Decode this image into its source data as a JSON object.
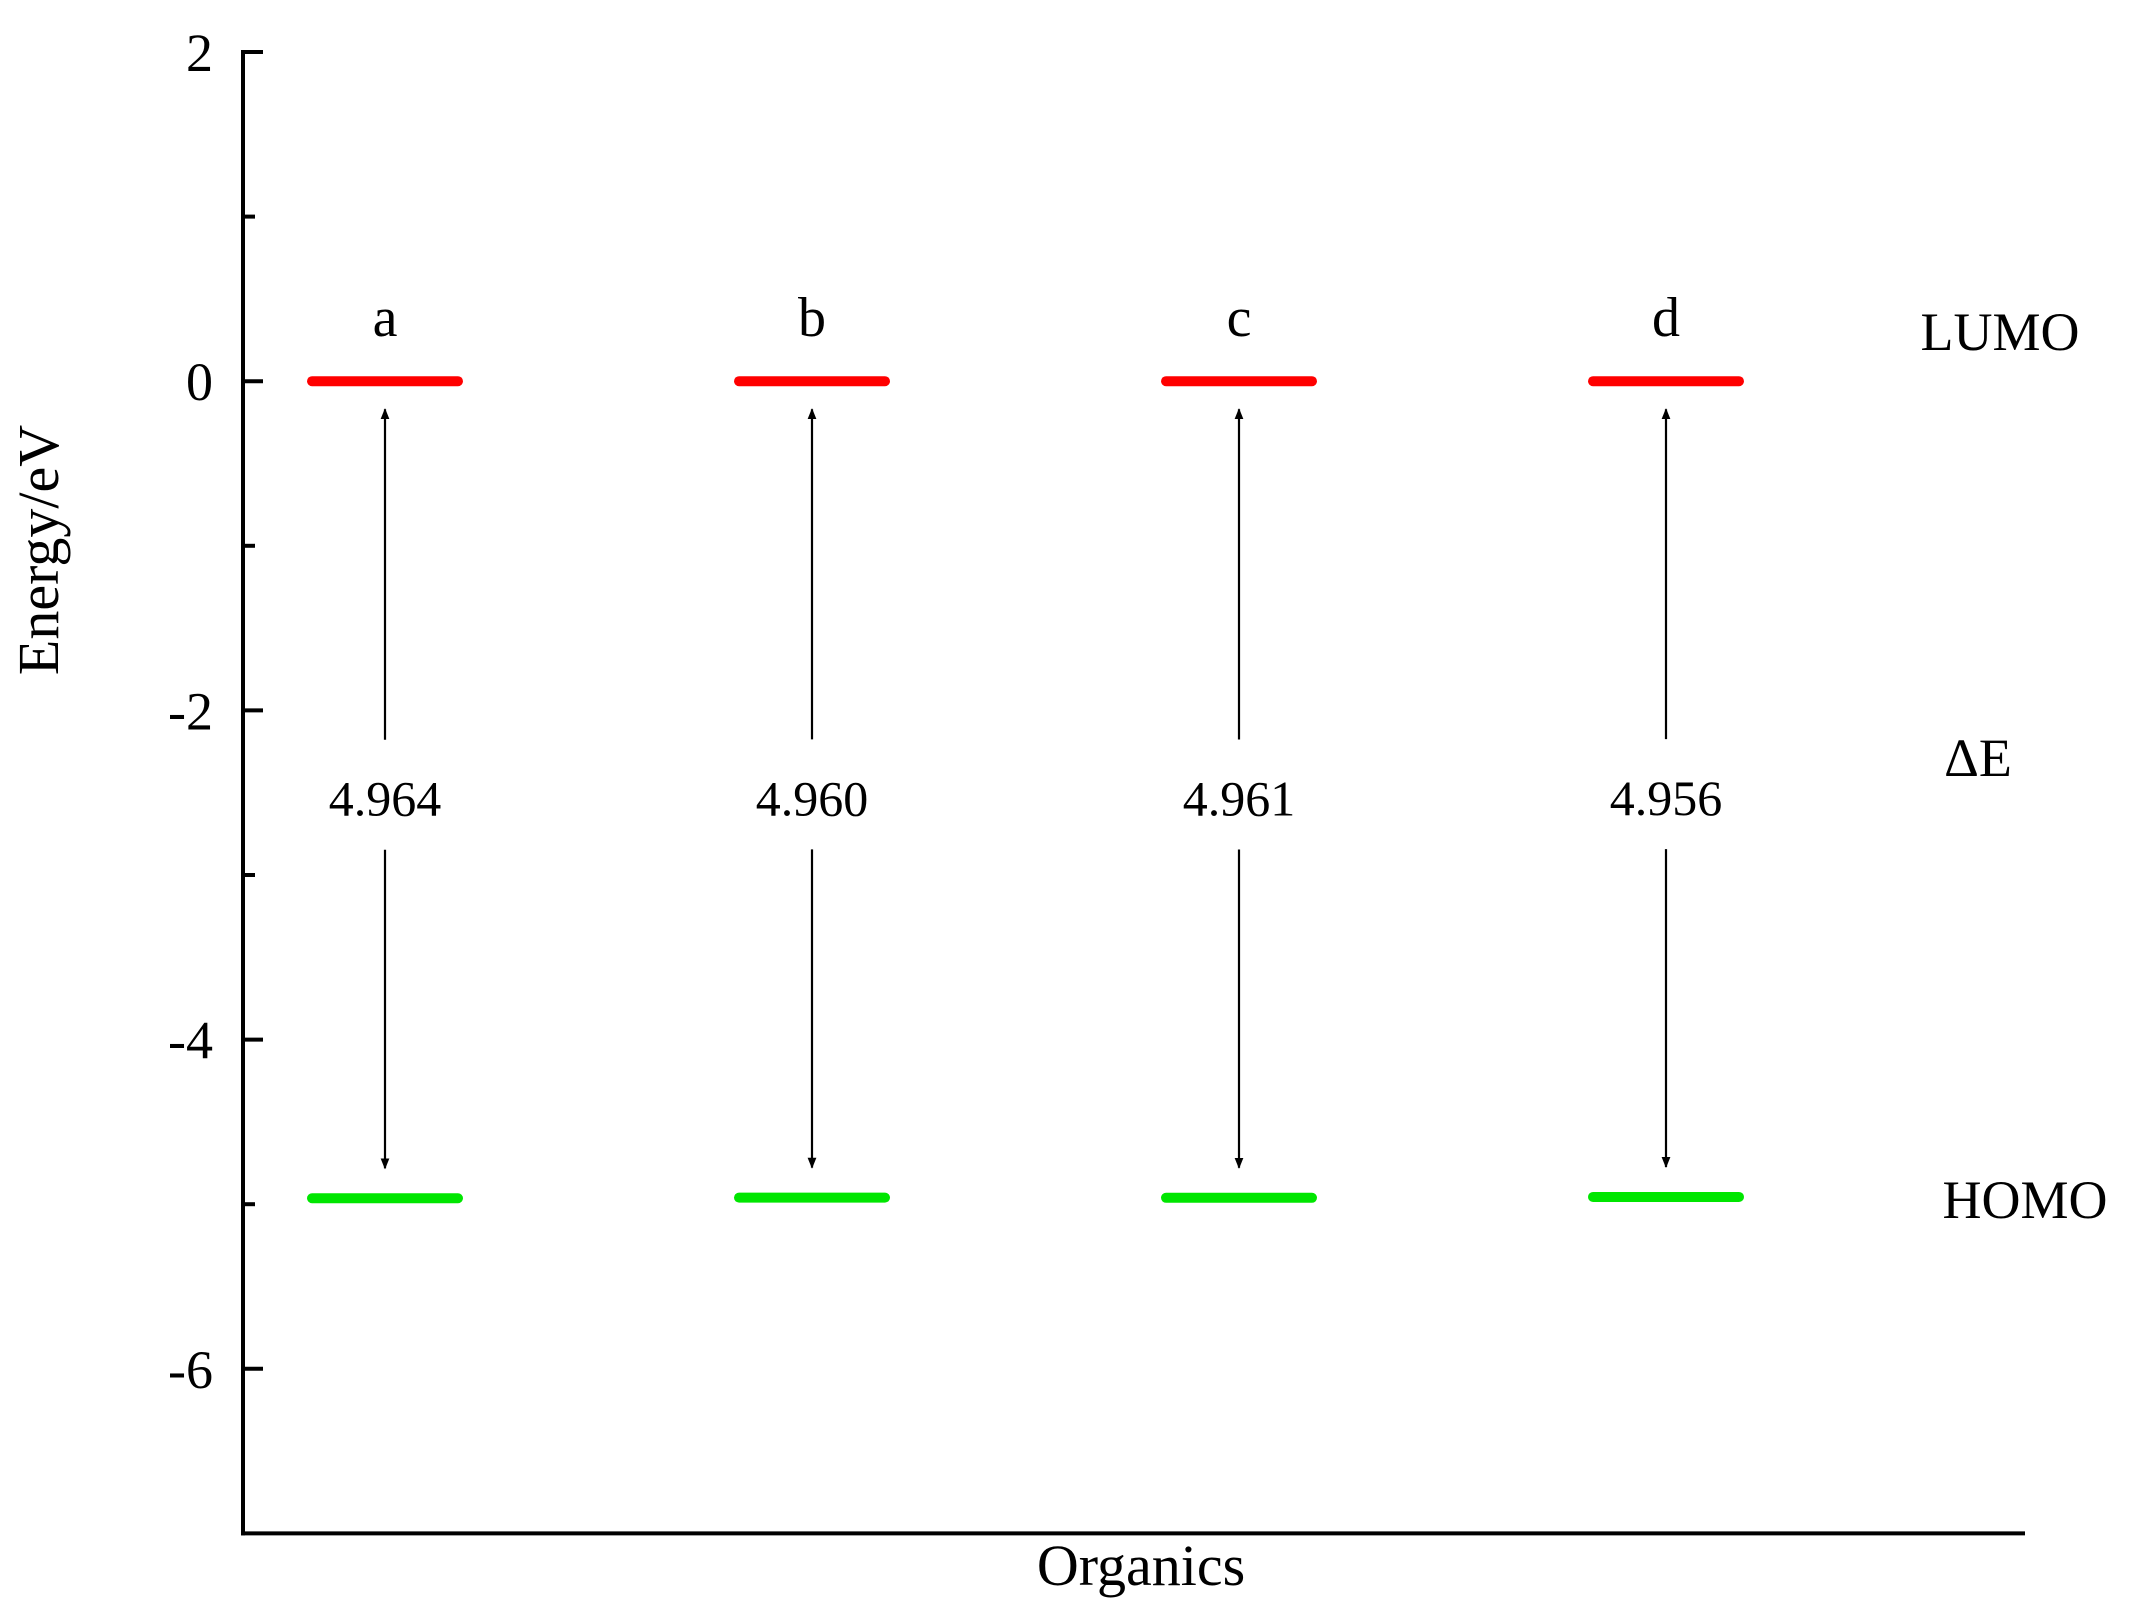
{
  "chart_data": {
    "type": "energy-level",
    "xlabel": "Organics",
    "ylabel": "Energy/eV",
    "ylim": [
      -7.0,
      2.0
    ],
    "yticks": [
      2,
      0,
      -2,
      -4,
      -6
    ],
    "ytick_labels": [
      "2",
      "0",
      "-2",
      "-4",
      "-6"
    ],
    "minor_yticks": [
      1,
      -1,
      -3,
      -5
    ],
    "grid": false,
    "x_axis_ticks": false,
    "level_labels": {
      "lumo": "LUMO",
      "gap": "ΔE",
      "homo": "HOMO"
    },
    "colors": {
      "lumo": "#ff0000",
      "homo": "#00e600",
      "axis": "#000000",
      "arrow": "#000000"
    },
    "series": [
      {
        "label": "a",
        "lumo": 0.0,
        "homo": -4.964,
        "gap": "4.964"
      },
      {
        "label": "b",
        "lumo": 0.0,
        "homo": -4.96,
        "gap": "4.960"
      },
      {
        "label": "c",
        "lumo": 0.0,
        "homo": -4.961,
        "gap": "4.961"
      },
      {
        "label": "d",
        "lumo": 0.0,
        "homo": -4.956,
        "gap": "4.956"
      }
    ]
  }
}
